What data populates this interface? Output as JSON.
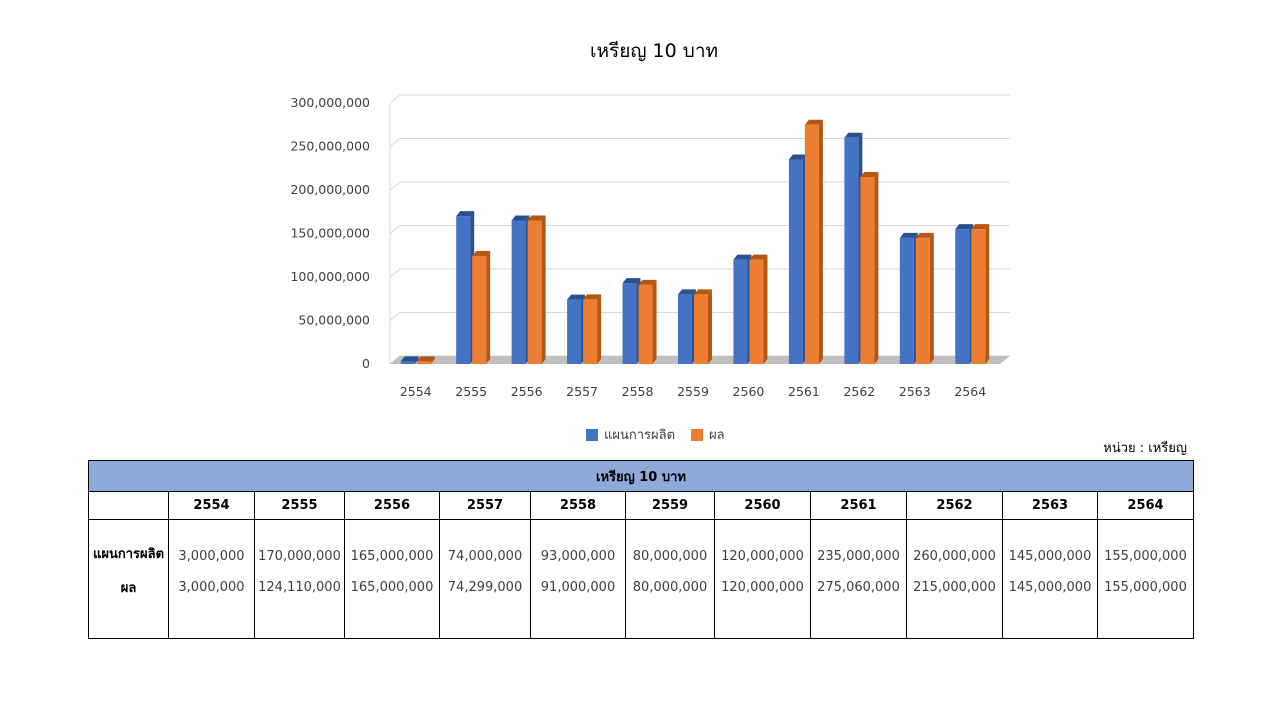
{
  "chart_data": {
    "type": "bar",
    "title": "เหรียญ 10 บาท",
    "categories": [
      "2554",
      "2555",
      "2556",
      "2557",
      "2558",
      "2559",
      "2560",
      "2561",
      "2562",
      "2563",
      "2564"
    ],
    "series": [
      {
        "name": "แผนการผลิต",
        "color": "#4472c4",
        "side": "#2b4f8f",
        "values": [
          3000000,
          170000000,
          165000000,
          74000000,
          93000000,
          80000000,
          120000000,
          235000000,
          260000000,
          145000000,
          155000000
        ]
      },
      {
        "name": "ผล",
        "color": "#ed7d31",
        "side": "#b35713",
        "values": [
          3000000,
          124110000,
          165000000,
          74299000,
          91000000,
          80000000,
          120000000,
          275060000,
          215000000,
          145000000,
          155000000
        ]
      }
    ],
    "yticks": [
      "300,000,000",
      "250,000,000",
      "200,000,000",
      "150,000,000",
      "100,000,000",
      "50,000,000",
      "0"
    ],
    "ylim": [
      0,
      300000000
    ],
    "grid": true,
    "legend": "bottom"
  },
  "unit": "หน่วย : เหรียญ",
  "table": {
    "title": "เหรียญ 10 บาท",
    "years": [
      "2554",
      "2555",
      "2556",
      "2557",
      "2558",
      "2559",
      "2560",
      "2561",
      "2562",
      "2563",
      "2564"
    ],
    "rows": [
      {
        "label": "แผนการผลิต",
        "values": [
          "3,000,000",
          "170,000,000",
          "165,000,000",
          "74,000,000",
          "93,000,000",
          "80,000,000",
          "120,000,000",
          "235,000,000",
          "260,000,000",
          "145,000,000",
          "155,000,000"
        ]
      },
      {
        "label": "ผล",
        "values": [
          "3,000,000",
          "124,110,000",
          "165,000,000",
          "74,299,000",
          "91,000,000",
          "80,000,000",
          "120,000,000",
          "275,060,000",
          "215,000,000",
          "145,000,000",
          "155,000,000"
        ]
      }
    ]
  }
}
